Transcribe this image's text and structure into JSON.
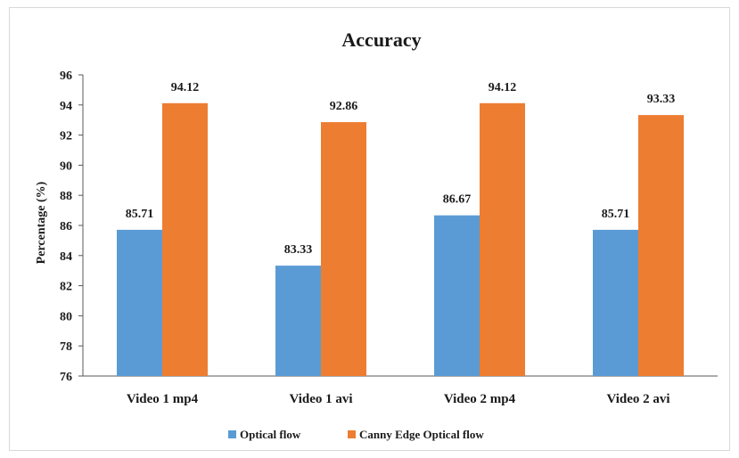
{
  "chart_data": {
    "type": "bar",
    "title": "Accuracy",
    "xlabel": "",
    "ylabel": "Percentage (%)",
    "ylim": [
      76,
      96
    ],
    "yticks": [
      76,
      78,
      80,
      82,
      84,
      86,
      88,
      90,
      92,
      94,
      96
    ],
    "grid": false,
    "legend_position": "bottom",
    "categories": [
      "Video 1 mp4",
      "Video 1 avi",
      "Video 2 mp4",
      "Video 2 avi"
    ],
    "series": [
      {
        "name": "Optical flow",
        "color": "#5B9BD5",
        "values": [
          85.71,
          83.33,
          86.67,
          85.71
        ],
        "labels": [
          "85.71",
          "83.33",
          "86.67",
          "85.71"
        ]
      },
      {
        "name": "Canny Edge Optical flow",
        "color": "#ED7D31",
        "values": [
          94.12,
          92.86,
          94.12,
          93.33
        ],
        "labels": [
          "94.12",
          "92.86",
          "94.12",
          "93.33"
        ]
      }
    ]
  }
}
